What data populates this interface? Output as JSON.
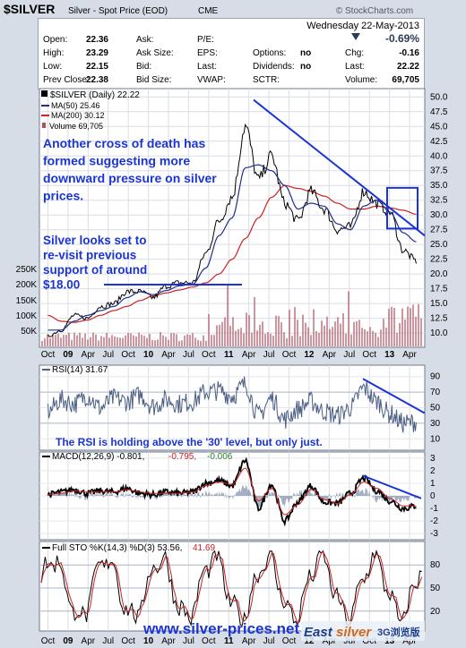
{
  "header": {
    "symbol": "$SILVER",
    "name": "Silver - Spot Price (EOD)",
    "exchange": "CME",
    "watermark": "© StockCharts.com",
    "date_line": "Wednesday   22-May-2013",
    "change_pct": "-0.69%",
    "quote_fields": [
      {
        "label": "Open:",
        "value": "22.36"
      },
      {
        "label": "High:",
        "value": "23.29"
      },
      {
        "label": "Low:",
        "value": "22.15"
      },
      {
        "label": "Prev Close:",
        "value": "22.38"
      },
      {
        "label": "Ask:",
        "value": ""
      },
      {
        "label": "Ask Size:",
        "value": ""
      },
      {
        "label": "Bid:",
        "value": ""
      },
      {
        "label": "Bid Size:",
        "value": ""
      },
      {
        "label": "P/E:",
        "value": ""
      },
      {
        "label": "EPS:",
        "value": ""
      },
      {
        "label": "Last:",
        "value": ""
      },
      {
        "label": "VWAP:",
        "value": ""
      },
      {
        "label": "Options:",
        "value": "no"
      },
      {
        "label": "Dividends:",
        "value": "no"
      },
      {
        "label": "SCTR:",
        "value": ""
      },
      {
        "label": "Chg:",
        "value": "-0.16"
      },
      {
        "label": "Last:",
        "value": "22.22"
      },
      {
        "label": "Volume:",
        "value": "69,705"
      }
    ]
  },
  "legend": {
    "price": "$SILVER (Daily) 22.22",
    "ma50": "MA(50) 25.46",
    "ma200": "MA(200) 30.12",
    "volume": "Volume 69,705"
  },
  "annotations": {
    "cross_of_death": [
      "Another cross of death has",
      "formed suggesting more",
      "downward pressure on silver",
      "prices."
    ],
    "support": [
      "Silver looks set to",
      "re-visit previous",
      "support of around",
      "$18.00"
    ],
    "rsi_note": "The RSI is holding above the '30' level, but only just.",
    "footer_url": "www.silver-prices.net",
    "footer_brand_a": "East",
    "footer_brand_b": "silver",
    "footer_brand_c": "3G浏览版"
  },
  "panels": {
    "rsi_label": "RSI(14) 31.67",
    "macd_label_a": "MACD(12,26,9) -0.801,",
    "macd_label_b": "-0.795,",
    "macd_label_c": "-0.006",
    "sto_label_a": "Full STO %K(14,3) %D(3) 53.56,",
    "sto_label_b": "41.69"
  },
  "colors": {
    "price": "#000000",
    "ma50": "#1f2f8f",
    "ma200": "#cc2222",
    "volume": "#b05060",
    "annotation": "#1b34d6",
    "trendline": "#1b34d6",
    "rsi": "#4a5d82",
    "macd_signal": "#cc2222",
    "histogram": "#5c6f93",
    "sto_d": "#cc2222",
    "change_down": "#2d3b57"
  },
  "chart_data": [
    {
      "type": "line",
      "title": "$SILVER Silver - Spot Price (EOD) CME",
      "x_ticks": [
        "Oct",
        "09",
        "Apr",
        "Jul",
        "Oct",
        "10",
        "Apr",
        "Jul",
        "Oct",
        "11",
        "Apr",
        "Jul",
        "Oct",
        "12",
        "Apr",
        "Jul",
        "Oct",
        "13",
        "Apr"
      ],
      "y_ticks": [
        10.0,
        12.5,
        15.0,
        17.5,
        20.0,
        22.5,
        25.0,
        27.5,
        30.0,
        32.5,
        35.0,
        37.5,
        40.0,
        42.5,
        45.0,
        47.5,
        50.0
      ],
      "ylim": [
        8.5,
        50.5
      ],
      "volume_ticks": [
        "50K",
        "100K",
        "150K",
        "200K",
        "250K"
      ],
      "x": [
        "2008-10",
        "2008-12",
        "2009-02",
        "2009-04",
        "2009-06",
        "2009-08",
        "2009-10",
        "2009-12",
        "2010-02",
        "2010-04",
        "2010-06",
        "2010-08",
        "2010-10",
        "2010-12",
        "2011-02",
        "2011-04",
        "2011-06",
        "2011-08",
        "2011-10",
        "2011-12",
        "2012-02",
        "2012-04",
        "2012-06",
        "2012-08",
        "2012-10",
        "2012-12",
        "2013-02",
        "2013-04",
        "2013-05"
      ],
      "series": [
        {
          "name": "$SILVER",
          "values": [
            9.5,
            10.5,
            13.0,
            12.5,
            14.5,
            15.0,
            17.0,
            17.0,
            16.0,
            18.0,
            18.5,
            18.5,
            23.5,
            29.0,
            33.0,
            45.0,
            36.0,
            40.0,
            32.0,
            29.0,
            34.0,
            31.0,
            27.5,
            28.0,
            34.0,
            32.0,
            30.5,
            24.0,
            22.22
          ]
        },
        {
          "name": "MA(50)",
          "values": [
            10.5,
            10.5,
            12.0,
            13.0,
            13.8,
            14.5,
            16.0,
            17.0,
            16.5,
            17.2,
            18.0,
            18.3,
            21.0,
            26.5,
            29.5,
            38.0,
            38.5,
            37.5,
            35.0,
            31.0,
            32.0,
            31.5,
            28.5,
            27.5,
            31.5,
            32.5,
            30.5,
            27.0,
            25.46
          ]
        },
        {
          "name": "MA(200)",
          "values": [
            13.0,
            12.0,
            11.8,
            12.2,
            13.0,
            13.8,
            14.5,
            15.5,
            16.3,
            16.8,
            17.3,
            17.8,
            18.5,
            20.0,
            22.5,
            26.0,
            29.5,
            33.0,
            35.0,
            34.5,
            34.0,
            33.2,
            32.0,
            31.0,
            31.0,
            31.5,
            31.2,
            30.8,
            30.12
          ]
        }
      ],
      "legend": "top-left",
      "grid": true
    },
    {
      "type": "line",
      "title": "RSI(14) 31.67",
      "y_ticks": [
        10,
        30,
        50,
        70,
        90
      ],
      "ylim": [
        0,
        100
      ],
      "series": [
        {
          "name": "RSI(14)",
          "values": [
            45,
            60,
            55,
            65,
            50,
            62,
            58,
            66,
            52,
            60,
            55,
            58,
            70,
            72,
            65,
            80,
            40,
            62,
            35,
            48,
            58,
            45,
            40,
            50,
            75,
            58,
            42,
            30,
            31.67
          ]
        }
      ]
    },
    {
      "type": "line",
      "title": "MACD(12,26,9)",
      "y_ticks": [
        -3,
        -2,
        -1,
        0,
        1,
        2,
        3
      ],
      "ylim": [
        -3.2,
        3.2
      ],
      "series": [
        {
          "name": "MACD",
          "values": [
            0.1,
            0.3,
            0.5,
            0.2,
            0.4,
            0.3,
            0.6,
            0.2,
            0.1,
            0.3,
            0.2,
            0.3,
            1.0,
            1.2,
            0.8,
            2.8,
            -1.0,
            0.9,
            -2.0,
            -0.5,
            0.8,
            -0.5,
            -0.6,
            0.2,
            1.4,
            0.4,
            -0.4,
            -1.0,
            -0.801
          ]
        },
        {
          "name": "Signal",
          "values": [
            0.1,
            0.2,
            0.4,
            0.3,
            0.3,
            0.3,
            0.5,
            0.3,
            0.2,
            0.2,
            0.2,
            0.3,
            0.8,
            1.1,
            0.9,
            2.2,
            -0.4,
            0.6,
            -1.5,
            -0.7,
            0.5,
            -0.3,
            -0.6,
            0.1,
            1.1,
            0.6,
            -0.2,
            -0.8,
            -0.795
          ]
        }
      ]
    },
    {
      "type": "line",
      "title": "Full STO %K(14,3) %D(3)",
      "y_ticks": [
        20,
        50,
        80
      ],
      "ylim": [
        0,
        100
      ],
      "series": [
        {
          "name": "%K",
          "values": [
            30,
            80,
            60,
            85,
            20,
            75,
            90,
            25,
            15,
            80,
            40,
            70,
            90,
            85,
            30,
            95,
            15,
            80,
            10,
            50,
            85,
            20,
            30,
            75,
            90,
            35,
            20,
            15,
            53.56
          ]
        },
        {
          "name": "%D",
          "values": [
            35,
            70,
            65,
            78,
            30,
            68,
            85,
            35,
            22,
            70,
            45,
            65,
            85,
            82,
            38,
            90,
            22,
            72,
            18,
            45,
            78,
            28,
            32,
            68,
            85,
            42,
            25,
            20,
            41.69
          ]
        }
      ]
    }
  ]
}
